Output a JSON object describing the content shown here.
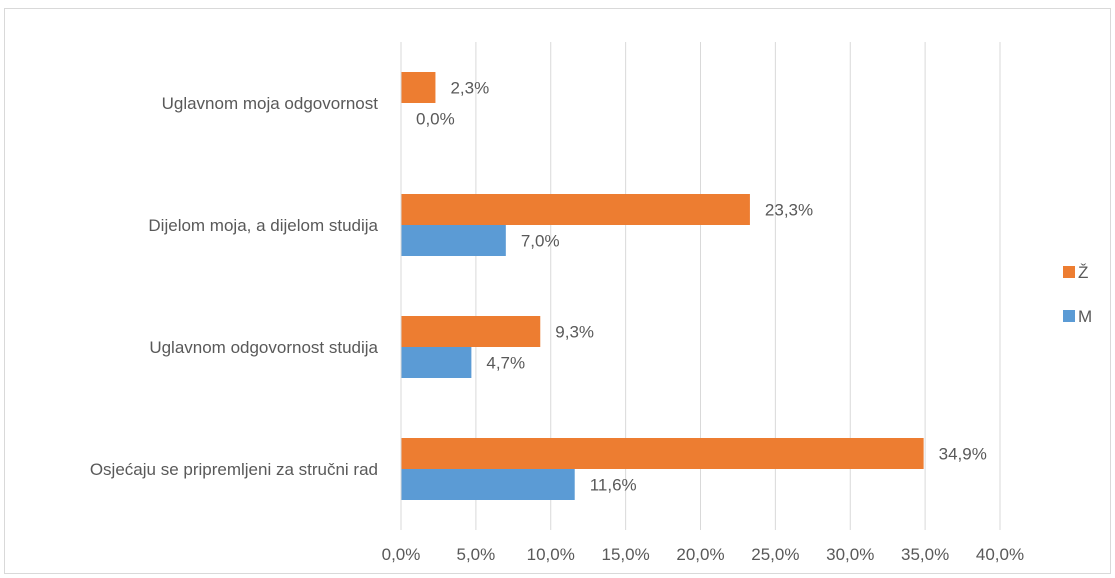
{
  "chart_data": {
    "type": "bar",
    "orientation": "horizontal",
    "categories": [
      "Uglavnom moja odgovornost",
      "Dijelom moja, a dijelom studija",
      "Uglavnom odgovornost studija",
      "Osjećaju se pripremljeni za stručni rad"
    ],
    "series": [
      {
        "name": "Ž",
        "color": "#ED7D31",
        "values": [
          2.3,
          23.3,
          9.3,
          34.9
        ],
        "labels": [
          "2,3%",
          "23,3%",
          "9,3%",
          "34,9%"
        ]
      },
      {
        "name": "M",
        "color": "#5B9BD5",
        "values": [
          0.0,
          7.0,
          4.7,
          11.6
        ],
        "labels": [
          "0,0%",
          "7,0%",
          "4,7%",
          "11,6%"
        ]
      }
    ],
    "xlim": [
      0,
      40
    ],
    "xticks": [
      "0,0%",
      "5,0%",
      "10,0%",
      "15,0%",
      "20,0%",
      "25,0%",
      "30,0%",
      "35,0%",
      "40,0%"
    ],
    "grid": true,
    "legend_position": "right",
    "title": "",
    "xlabel": "",
    "ylabel": ""
  }
}
